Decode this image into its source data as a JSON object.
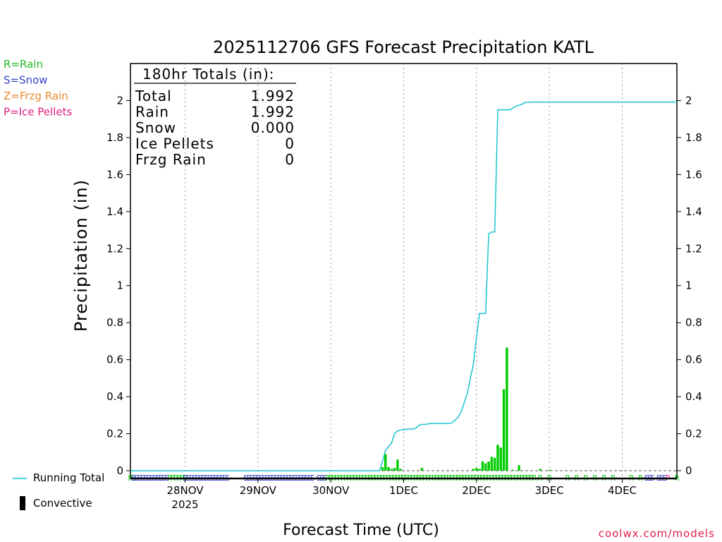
{
  "chart_data": {
    "type": "bar",
    "title": "2025112706 GFS Forecast Precipitation KATL",
    "xlabel": "Forecast Time (UTC)",
    "ylabel": "Precipitation (in)",
    "ylim": [
      0,
      2.2
    ],
    "y_ticks": [
      0,
      0.2,
      0.4,
      0.6,
      0.8,
      1,
      1.2,
      1.4,
      1.6,
      1.8,
      2
    ],
    "y_tick_labels": [
      "0",
      "0.2",
      "0.4",
      "0.6",
      "0.8",
      "1",
      "1.2",
      "1.4",
      "1.6",
      "1.8",
      "2"
    ],
    "x_unit": "forecast hours from 2025-11-27 06Z",
    "xlim": [
      0,
      180
    ],
    "x_ticks": [
      {
        "hour": 18,
        "label": "28NOV",
        "sublabel": "2025"
      },
      {
        "hour": 42,
        "label": "29NOV",
        "sublabel": ""
      },
      {
        "hour": 66,
        "label": "30NOV",
        "sublabel": ""
      },
      {
        "hour": 90,
        "label": "1DEC",
        "sublabel": ""
      },
      {
        "hour": 114,
        "label": "2DEC",
        "sublabel": ""
      },
      {
        "hour": 138,
        "label": "3DEC",
        "sublabel": ""
      },
      {
        "hour": 162,
        "label": "4DEC",
        "sublabel": ""
      }
    ],
    "grid": "vertical dotted",
    "series": [
      {
        "name": "Running Total",
        "kind": "line",
        "color": "#19c4cf",
        "x": [
          0,
          82,
          83,
          84,
          85,
          86,
          87,
          88,
          89,
          90,
          91,
          92,
          93,
          94,
          95,
          96,
          97,
          98,
          99,
          100,
          101,
          102,
          103,
          104,
          105,
          106,
          107,
          108,
          109,
          110,
          111,
          112,
          113,
          114,
          115,
          116,
          117,
          118,
          119,
          120,
          121,
          122,
          123,
          124,
          125,
          126,
          127,
          128,
          129,
          130,
          131,
          132,
          133,
          134,
          135,
          136,
          138,
          180
        ],
        "values": [
          0,
          0,
          0.05,
          0.11,
          0.13,
          0.15,
          0.2,
          0.215,
          0.22,
          0.222,
          0.224,
          0.225,
          0.225,
          0.23,
          0.245,
          0.25,
          0.25,
          0.253,
          0.255,
          0.255,
          0.255,
          0.255,
          0.255,
          0.255,
          0.255,
          0.26,
          0.275,
          0.29,
          0.32,
          0.37,
          0.42,
          0.5,
          0.58,
          0.72,
          0.85,
          0.85,
          0.85,
          1.28,
          1.29,
          1.29,
          1.95,
          1.95,
          1.95,
          1.95,
          1.95,
          1.96,
          1.97,
          1.975,
          1.98,
          1.99,
          1.99,
          1.992,
          1.992,
          1.992,
          1.992,
          1.992,
          1.992,
          1.992
        ]
      },
      {
        "name": "Convective",
        "kind": "bar",
        "color": "#00cc00",
        "x": [
          83,
          84,
          85,
          86,
          87,
          88,
          89,
          96,
          113,
          114,
          115,
          116,
          117,
          118,
          119,
          120,
          121,
          122,
          123,
          124,
          126,
          128,
          135,
          138
        ],
        "values": [
          0.02,
          0.09,
          0.02,
          0.01,
          0.015,
          0.06,
          0.01,
          0.015,
          0.01,
          0.015,
          0.01,
          0.05,
          0.04,
          0.05,
          0.075,
          0.07,
          0.14,
          0.125,
          0.44,
          0.665,
          0.005,
          0.03,
          0.01,
          0.005
        ]
      }
    ],
    "precip_type_markers": [
      {
        "type": "R",
        "color": "#00cc00",
        "ranges": [
          [
            0,
            1
          ],
          [
            13,
            18
          ],
          [
            65,
            133
          ],
          [
            135,
            135
          ],
          [
            138,
            138
          ],
          [
            144,
            144
          ],
          [
            147,
            147
          ],
          [
            150,
            150
          ],
          [
            153,
            153
          ],
          [
            156,
            156
          ],
          [
            159,
            159
          ],
          [
            165,
            165
          ],
          [
            168,
            168
          ],
          [
            180,
            180
          ]
        ]
      },
      {
        "type": "S",
        "color": "#2233cc",
        "ranges": [
          [
            1,
            12
          ],
          [
            18,
            32
          ],
          [
            38,
            60
          ],
          [
            62,
            64
          ],
          [
            170,
            172
          ],
          [
            174,
            176
          ]
        ]
      },
      {
        "type": "P",
        "color": "#e0208a",
        "ranges": [
          [
            177,
            177
          ]
        ]
      }
    ],
    "totals": {
      "header": "180hr Totals (in):",
      "rows": [
        {
          "label": "Total",
          "value": "1.992"
        },
        {
          "label": "Rain",
          "value": "1.992"
        },
        {
          "label": "Snow",
          "value": "0.000"
        },
        {
          "label": "Ice Pellets",
          "value": "0"
        },
        {
          "label": "Frzg Rain",
          "value": "0"
        }
      ]
    },
    "type_legend": [
      {
        "text": "R=Rain",
        "color": "#22bb22"
      },
      {
        "text": "S=Snow",
        "color": "#3344cc"
      },
      {
        "text": "Z=Frzg Rain",
        "color": "#e88a30"
      },
      {
        "text": "P=Ice Pellets",
        "color": "#e0207a"
      }
    ],
    "line_legend": {
      "running_total": "Running Total",
      "convective": "Convective"
    },
    "source": "coolwx.com/models"
  }
}
